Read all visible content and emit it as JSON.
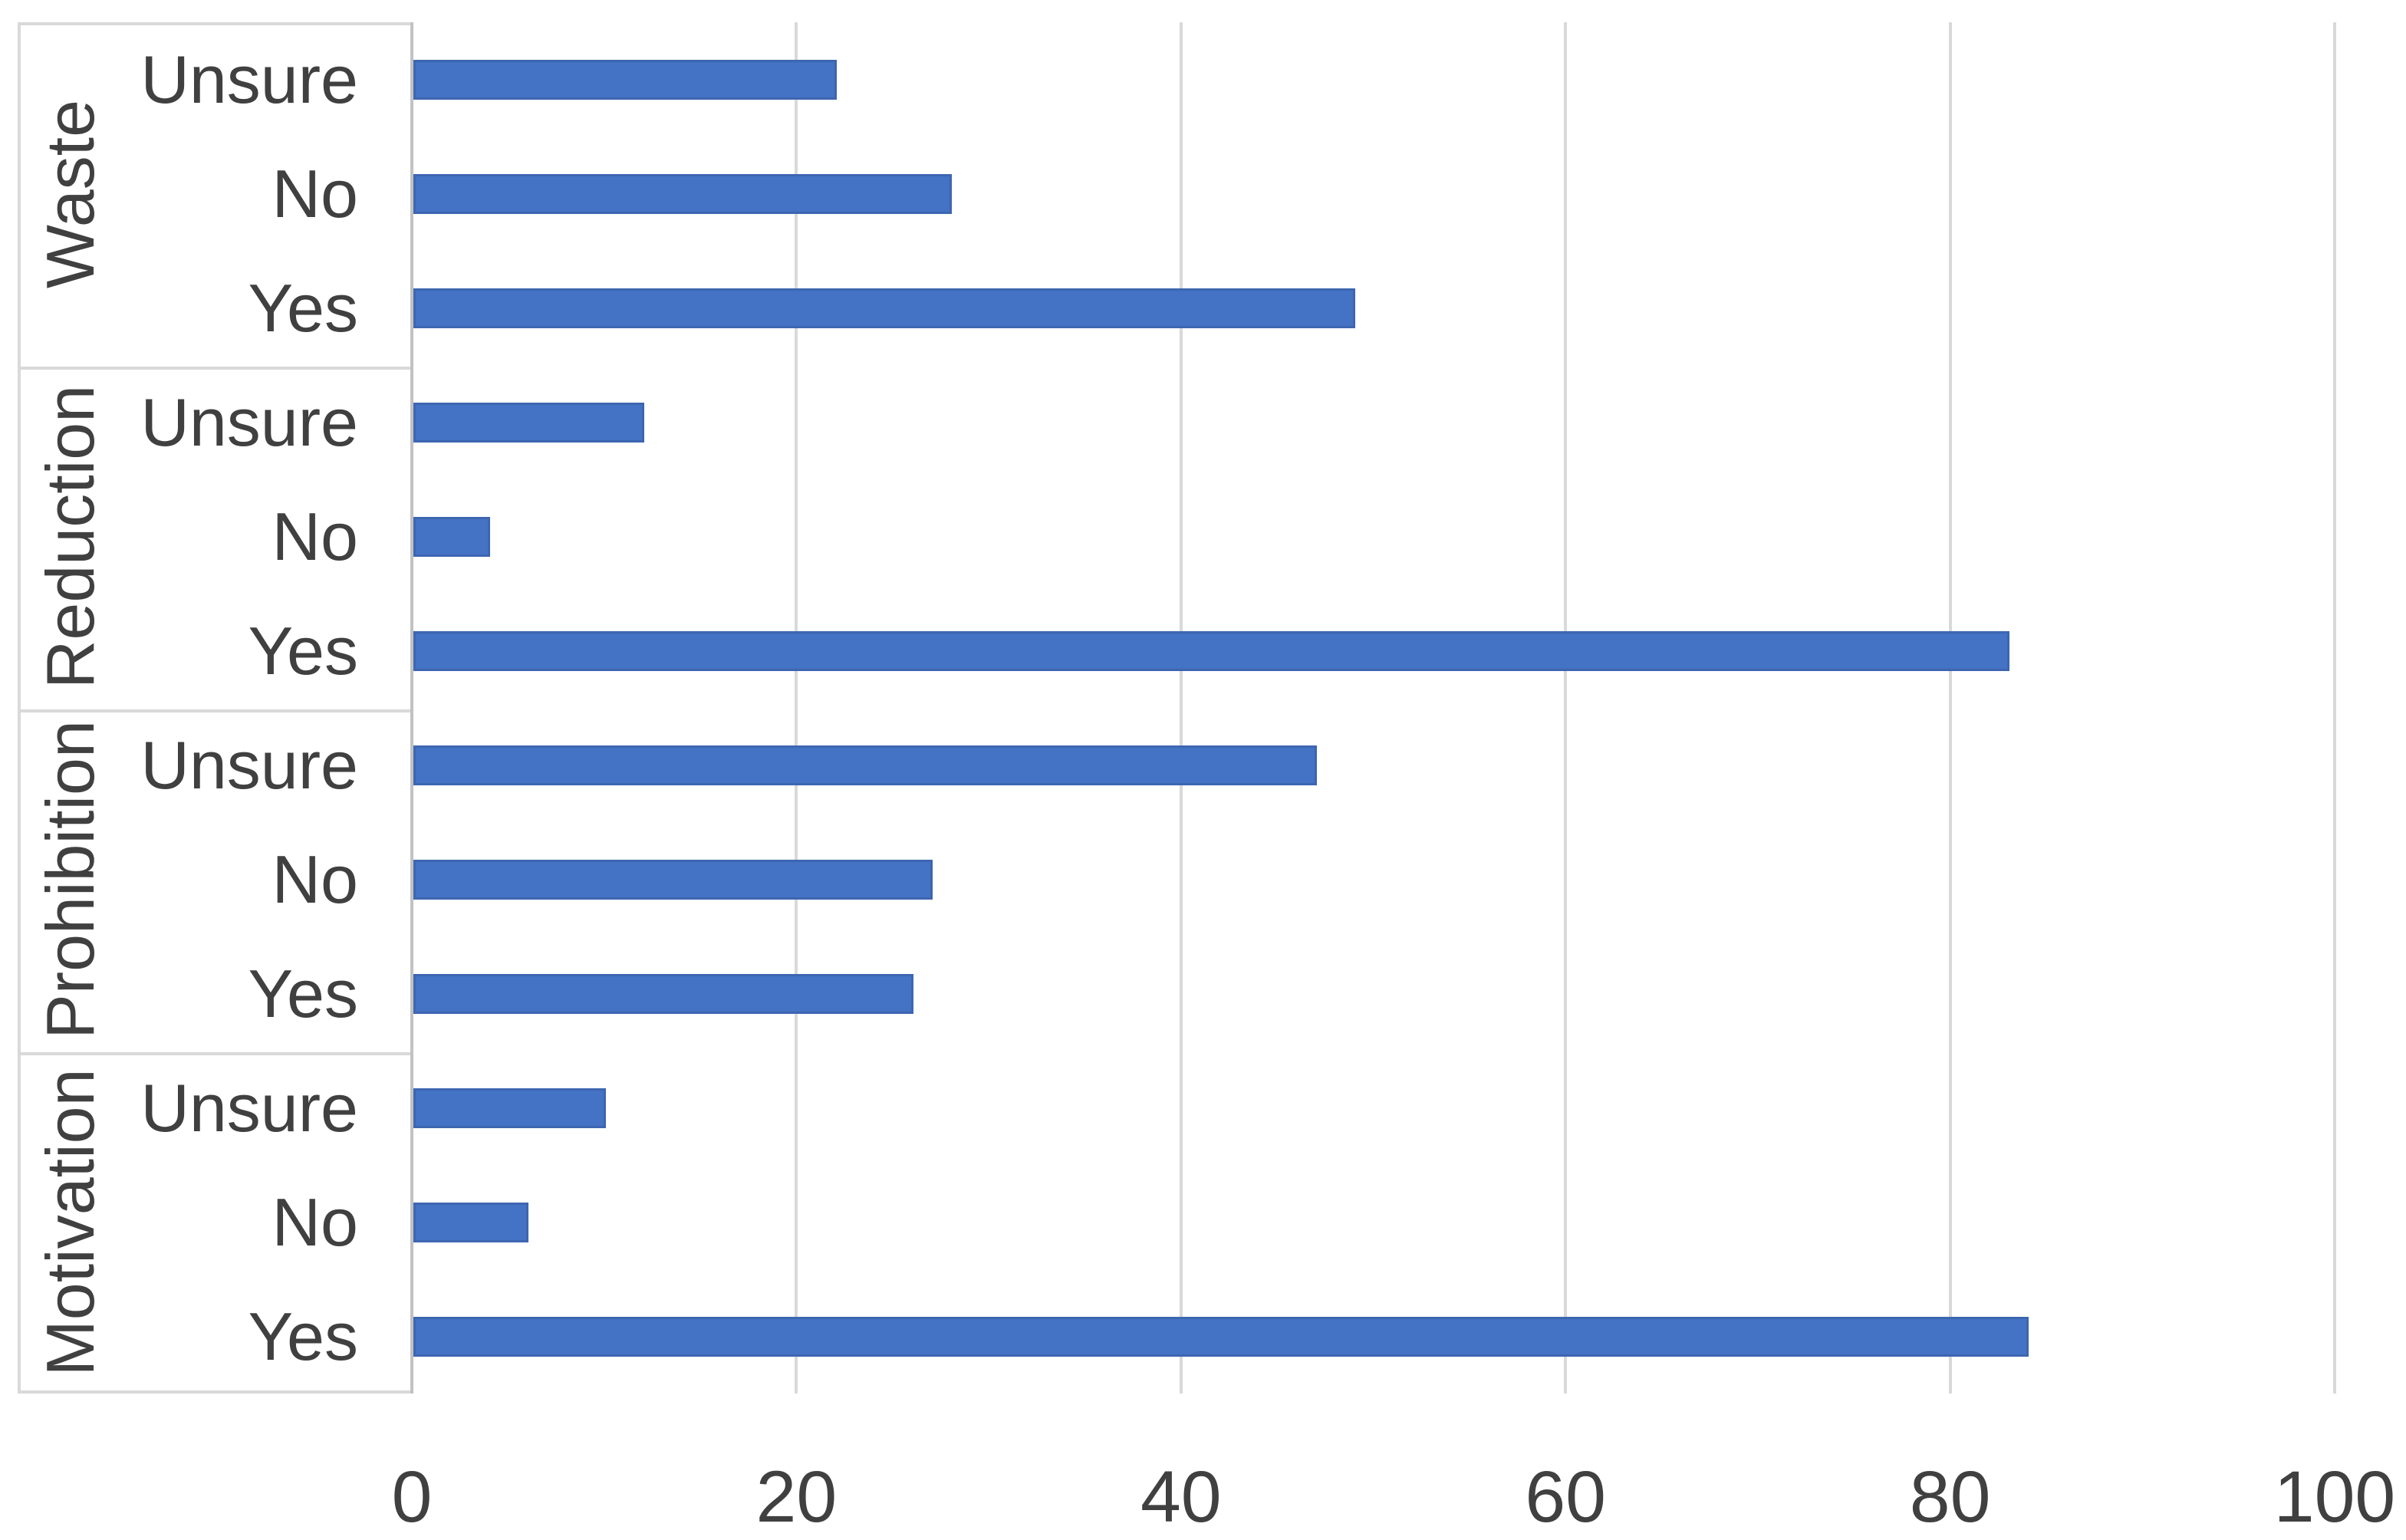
{
  "chart_data": {
    "type": "bar",
    "orientation": "horizontal",
    "title": "",
    "xlabel": "",
    "ylabel": "",
    "xlim": [
      0,
      100
    ],
    "x_ticks": [
      0,
      20,
      40,
      60,
      80,
      100
    ],
    "grid": true,
    "legend": false,
    "bar_color": "#4472C4",
    "gridline_color": "#D9D9D9",
    "axis_line_color": "#C2C2C2",
    "text_color": "#404040",
    "groups": [
      {
        "label": "Waste",
        "rows": [
          {
            "label": "Unsure",
            "value": 22
          },
          {
            "label": "No",
            "value": 28
          },
          {
            "label": "Yes",
            "value": 49
          }
        ]
      },
      {
        "label": "Reduction",
        "rows": [
          {
            "label": "Unsure",
            "value": 12
          },
          {
            "label": "No",
            "value": 4
          },
          {
            "label": "Yes",
            "value": 83
          }
        ]
      },
      {
        "label": "Prohibition",
        "rows": [
          {
            "label": "Unsure",
            "value": 47
          },
          {
            "label": "No",
            "value": 27
          },
          {
            "label": "Yes",
            "value": 26
          }
        ]
      },
      {
        "label": "Motivation",
        "rows": [
          {
            "label": "Unsure",
            "value": 10
          },
          {
            "label": "No",
            "value": 6
          },
          {
            "label": "Yes",
            "value": 84
          }
        ]
      }
    ]
  }
}
